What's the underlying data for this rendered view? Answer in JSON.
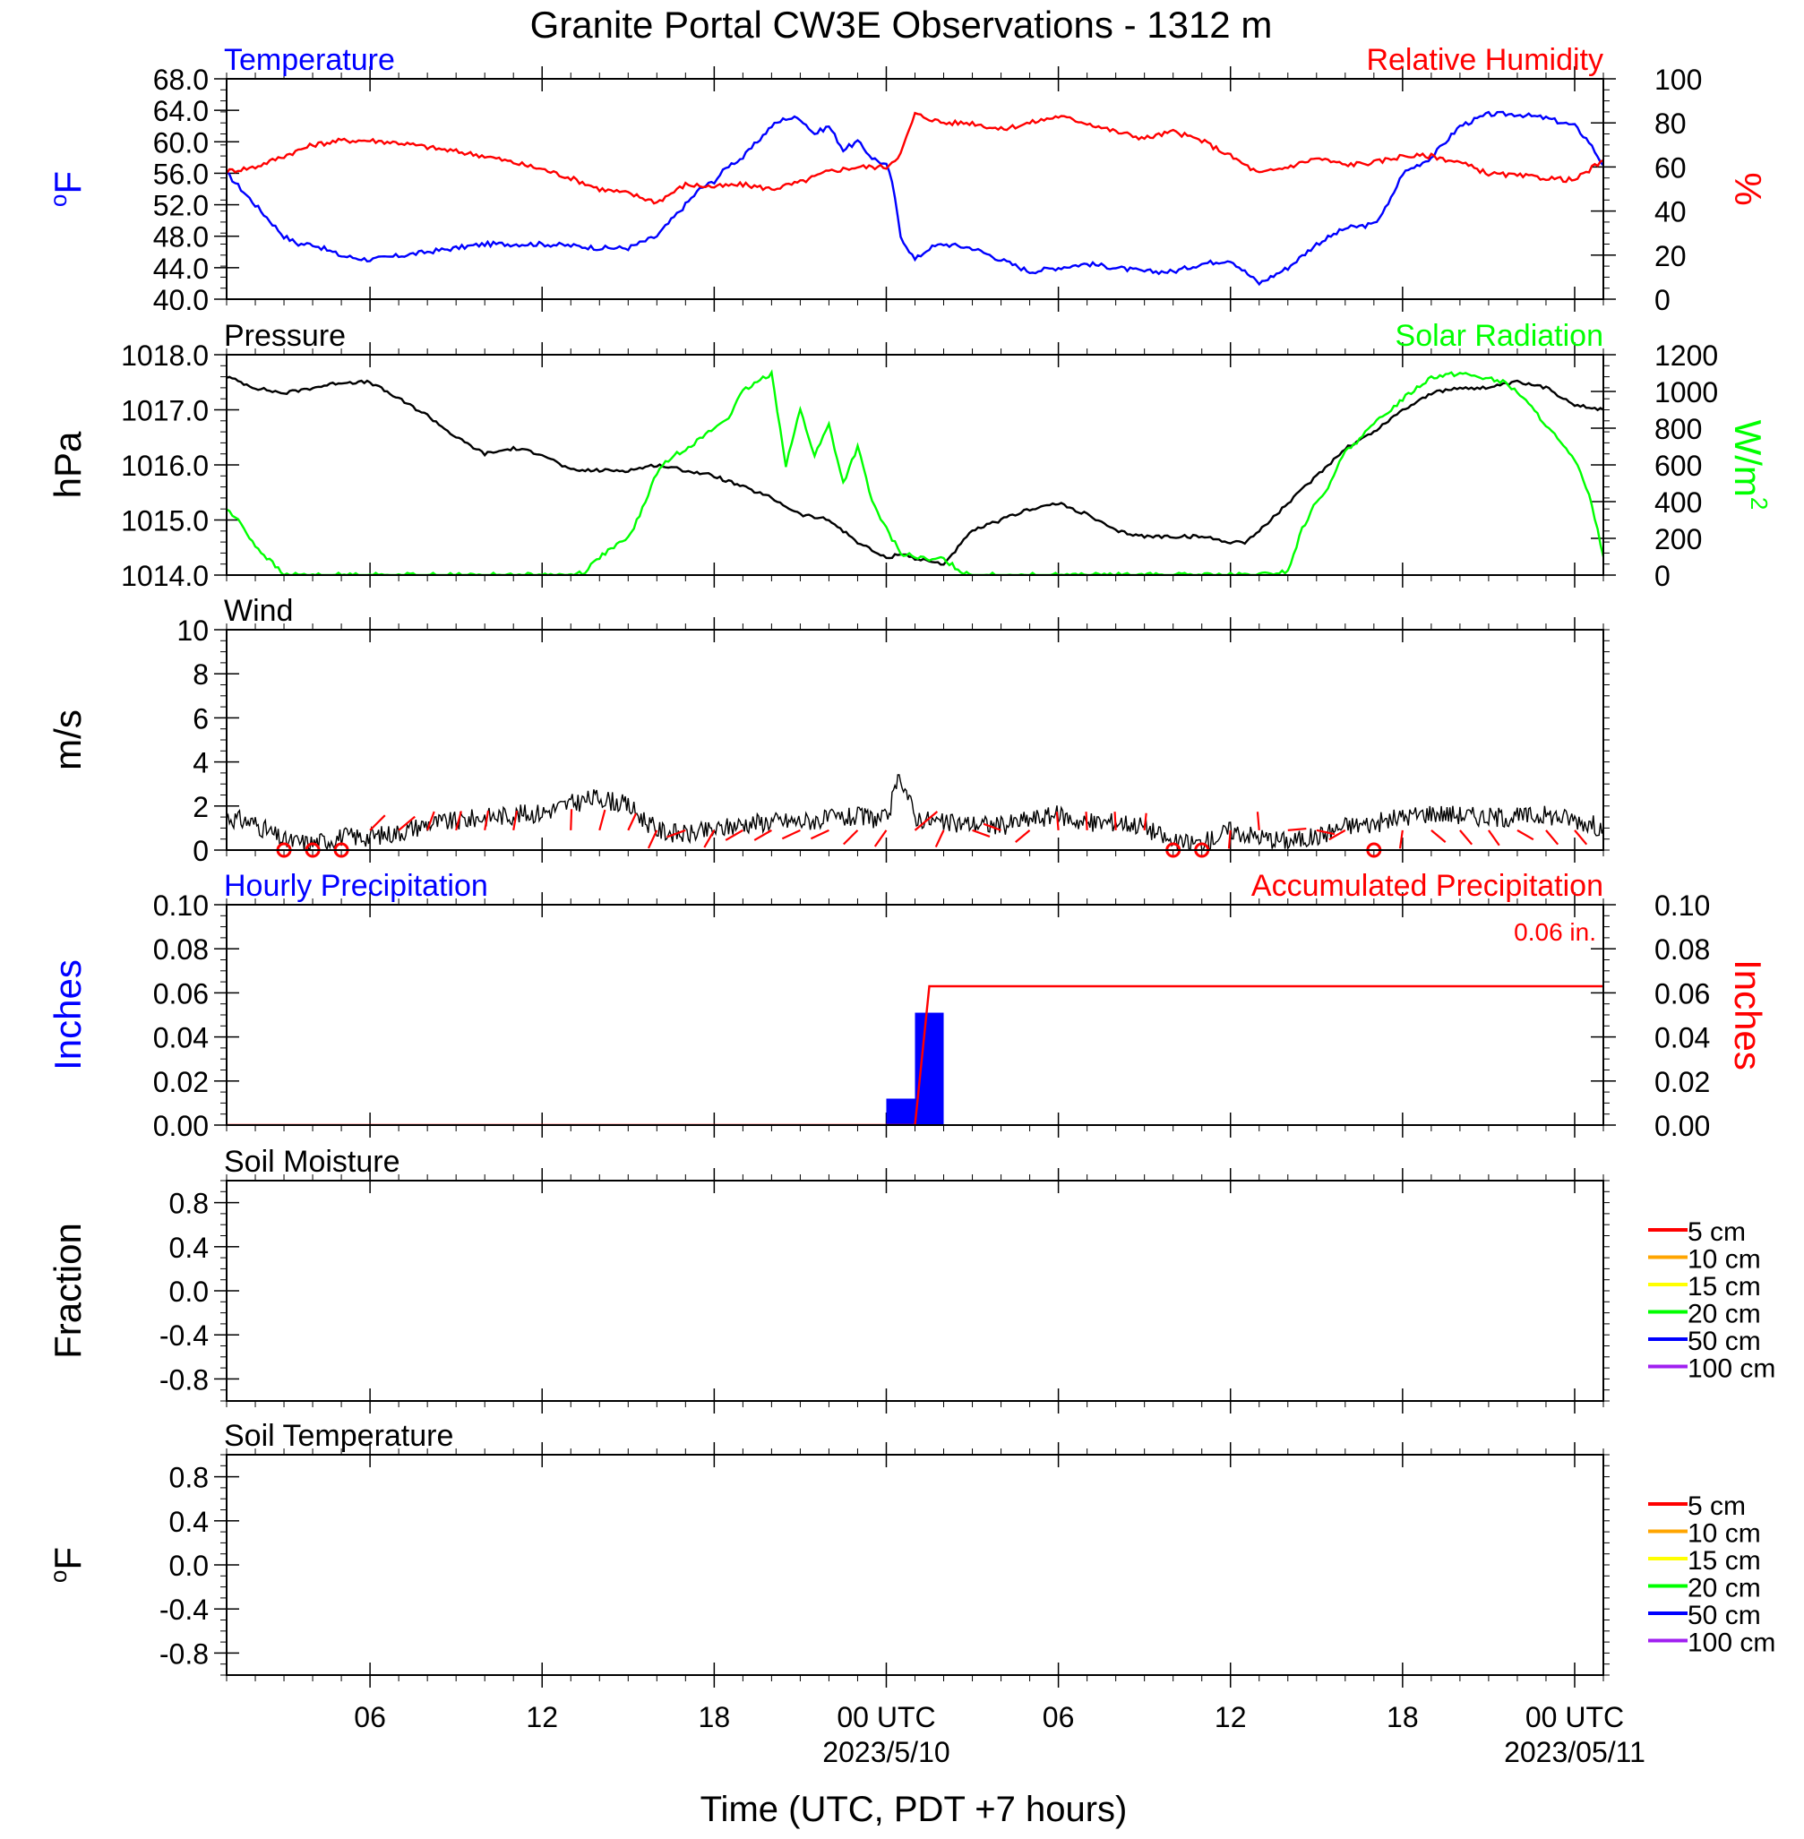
{
  "title": "Granite Portal CW3E Observations - 1312 m",
  "xlabel": "Time (UTC, PDT +7 hours)",
  "x_ticks": {
    "start_hour": 1,
    "end_hour": 49,
    "labels": [
      {
        "hour": 6,
        "label": "06"
      },
      {
        "hour": 12,
        "label": "12"
      },
      {
        "hour": 18,
        "label": "18"
      },
      {
        "hour": 24,
        "label": "00 UTC"
      },
      {
        "hour": 30,
        "label": "06"
      },
      {
        "hour": 36,
        "label": "12"
      },
      {
        "hour": 42,
        "label": "18"
      },
      {
        "hour": 48,
        "label": "00 UTC"
      }
    ],
    "dates": [
      {
        "hour": 24,
        "label": "2023/5/10"
      },
      {
        "hour": 48,
        "label": "2023/05/11"
      }
    ]
  },
  "chart_data": [
    {
      "type": "line",
      "panel": "temperature_humidity",
      "left_title": "Temperature",
      "right_title": "Relative Humidity",
      "ylabel_left": "oF",
      "ylabel_right": "%",
      "ylim_left": [
        40,
        68
      ],
      "ylim_right": [
        0,
        100
      ],
      "yticks_left": [
        "40.0",
        "44.0",
        "48.0",
        "52.0",
        "56.0",
        "60.0",
        "64.0",
        "68.0"
      ],
      "yticks_right": [
        "0",
        "20",
        "40",
        "60",
        "80",
        "100"
      ],
      "colors": {
        "left": "#0000ff",
        "right": "#ff0000"
      },
      "series": [
        {
          "name": "Temperature",
          "axis": "left",
          "x": [
            1,
            1.5,
            2,
            2.5,
            3,
            3.5,
            4,
            5,
            6,
            7,
            8,
            9,
            10,
            11,
            12,
            13,
            14,
            15,
            16,
            16.5,
            17,
            17.5,
            18,
            18.5,
            19,
            19.5,
            20,
            20.5,
            21,
            21.5,
            22,
            22.5,
            23,
            23.5,
            24,
            24.2,
            24.5,
            25,
            25.5,
            26,
            27,
            28,
            29,
            30,
            31,
            32,
            33,
            34,
            35,
            36,
            37,
            38,
            39,
            40,
            41,
            41.5,
            42,
            42.5,
            43,
            44,
            45,
            46,
            47,
            48,
            48.5,
            49
          ],
          "y": [
            56,
            54,
            52,
            50,
            48,
            47,
            47,
            45.5,
            45,
            45.5,
            46,
            46.5,
            47,
            47,
            47,
            46.8,
            46.5,
            46.5,
            48,
            50,
            52,
            54,
            55,
            57,
            58,
            60,
            62,
            63,
            63,
            61,
            62,
            59,
            60,
            58,
            57,
            55,
            48,
            45,
            46.5,
            47,
            46.5,
            45,
            43.5,
            44,
            44.5,
            44,
            43.5,
            43.5,
            44.5,
            45,
            42,
            44,
            47,
            49,
            49.5,
            52,
            56,
            57,
            58,
            62,
            63.5,
            63.5,
            63,
            62,
            60,
            57
          ]
        },
        {
          "name": "Relative Humidity",
          "axis": "right",
          "x": [
            1,
            2,
            3,
            4,
            5,
            6,
            7,
            8,
            9,
            10,
            11,
            12,
            13,
            14,
            15,
            16,
            17,
            18,
            19,
            20,
            21,
            22,
            23,
            24,
            24.5,
            25,
            26,
            27,
            28,
            29,
            30,
            31,
            32,
            33,
            34,
            35,
            36,
            37,
            38,
            39,
            40,
            41,
            42,
            43,
            44,
            45,
            46,
            47,
            48,
            49
          ],
          "y": [
            58,
            60,
            65,
            70,
            72,
            72,
            71,
            69,
            67,
            65,
            62,
            59,
            55,
            50,
            48,
            44,
            52,
            51,
            52,
            50,
            53,
            58,
            60,
            60,
            66,
            84,
            80,
            80,
            77,
            80,
            83,
            80,
            76,
            73,
            76,
            72,
            65,
            57,
            60,
            64,
            61,
            62,
            65,
            65,
            62,
            57,
            56,
            55,
            54,
            63
          ]
        }
      ]
    },
    {
      "type": "line",
      "panel": "pressure_solar",
      "left_title": "Pressure",
      "right_title": "Solar Radiation",
      "ylabel_left": "hPa",
      "ylabel_right": "W/m",
      "ylabel_right_sup": "2",
      "ylim_left": [
        1014,
        1018
      ],
      "ylim_right": [
        0,
        1200
      ],
      "yticks_left": [
        "1014.0",
        "1015.0",
        "1016.0",
        "1017.0",
        "1018.0"
      ],
      "yticks_right": [
        "0",
        "200",
        "400",
        "600",
        "800",
        "1000",
        "1200"
      ],
      "colors": {
        "left": "#000000",
        "right": "#00ff00"
      },
      "series": [
        {
          "name": "Pressure",
          "axis": "left",
          "x": [
            1,
            2,
            3,
            4,
            5,
            6,
            7,
            8,
            9,
            10,
            11,
            12,
            13,
            14,
            15,
            16,
            17,
            18,
            19,
            20,
            21,
            22,
            23,
            24,
            24.5,
            25,
            26,
            27,
            28,
            29,
            30,
            31,
            32,
            33,
            34,
            35,
            36,
            36.5,
            37,
            38,
            39,
            40,
            41,
            42,
            43,
            44,
            45,
            46,
            47,
            48,
            49
          ],
          "y": [
            1017.6,
            1017.4,
            1017.3,
            1017.4,
            1017.5,
            1017.5,
            1017.2,
            1016.9,
            1016.5,
            1016.2,
            1016.3,
            1016.2,
            1015.9,
            1015.9,
            1015.9,
            1016.0,
            1015.9,
            1015.8,
            1015.6,
            1015.4,
            1015.1,
            1015.0,
            1014.6,
            1014.3,
            1014.4,
            1014.3,
            1014.2,
            1014.8,
            1015.0,
            1015.2,
            1015.3,
            1015.1,
            1014.8,
            1014.7,
            1014.7,
            1014.7,
            1014.6,
            1014.6,
            1014.8,
            1015.3,
            1015.8,
            1016.3,
            1016.6,
            1017.0,
            1017.3,
            1017.4,
            1017.4,
            1017.5,
            1017.4,
            1017.1,
            1017.0
          ]
        },
        {
          "name": "Solar Radiation",
          "axis": "right",
          "x": [
            1,
            1.5,
            2,
            3,
            13,
            13.5,
            14,
            15,
            15.5,
            16,
            16.5,
            17,
            17.5,
            18,
            18.5,
            19,
            19.5,
            20,
            20.5,
            21,
            21.5,
            22,
            22.5,
            23,
            23.5,
            24,
            24.5,
            25,
            25.5,
            26,
            26.5,
            27,
            37,
            38,
            38.5,
            39,
            39.5,
            40,
            40.5,
            41,
            42,
            43,
            44,
            45,
            45.5,
            46,
            47,
            48,
            48.5,
            49
          ],
          "y": [
            360,
            280,
            160,
            0,
            0,
            20,
            100,
            200,
            360,
            560,
            640,
            690,
            740,
            800,
            860,
            1000,
            1050,
            1100,
            600,
            900,
            650,
            820,
            500,
            700,
            400,
            250,
            120,
            100,
            80,
            90,
            30,
            0,
            0,
            20,
            250,
            400,
            500,
            680,
            740,
            820,
            960,
            1080,
            1100,
            1070,
            1050,
            1000,
            820,
            620,
            450,
            100
          ]
        }
      ]
    },
    {
      "type": "line",
      "panel": "wind",
      "left_title": "Wind",
      "ylabel_left": "m/s",
      "ylim_left": [
        0,
        10
      ],
      "yticks_left": [
        "0",
        "2",
        "4",
        "6",
        "8",
        "10"
      ],
      "colors": {
        "speed": "#000000",
        "barb": "#ff0000"
      },
      "series": [
        {
          "name": "Wind Speed",
          "axis": "left",
          "x": [
            1,
            2,
            3,
            4,
            5,
            6,
            7,
            8,
            9,
            10,
            11,
            12,
            13,
            14,
            15,
            16,
            17,
            18,
            19,
            20,
            21,
            22,
            23,
            24,
            24.5,
            25,
            26,
            27,
            28,
            29,
            30,
            31,
            32,
            33,
            34,
            35,
            36,
            37,
            38,
            39,
            40,
            41,
            42,
            43,
            44,
            45,
            46,
            47,
            48,
            49
          ],
          "y": [
            1.5,
            1.2,
            0.4,
            0.3,
            0.6,
            0.6,
            0.8,
            1.2,
            1.3,
            1.5,
            1.6,
            1.7,
            2.1,
            2.4,
            2.0,
            0.9,
            0.7,
            0.9,
            1.2,
            1.3,
            1.3,
            1.4,
            1.5,
            1.4,
            3.4,
            1.5,
            1.2,
            1.2,
            1.1,
            1.4,
            1.6,
            1.2,
            1.3,
            1.1,
            0.3,
            0.3,
            0.9,
            0.6,
            0.4,
            0.6,
            1.1,
            1.2,
            1.5,
            1.7,
            1.6,
            1.5,
            1.5,
            1.6,
            1.4,
            1.0
          ]
        }
      ],
      "calm_markers": [
        3,
        4,
        5,
        34,
        35,
        41
      ],
      "barbs": [
        {
          "x": 6,
          "len": 1.6,
          "ang": -45
        },
        {
          "x": 7,
          "len": 1.6,
          "ang": -40
        },
        {
          "x": 8,
          "len": 1.5,
          "ang": -70
        },
        {
          "x": 9,
          "len": 1.5,
          "ang": -75
        },
        {
          "x": 10,
          "len": 1.5,
          "ang": -80
        },
        {
          "x": 11,
          "len": 1.5,
          "ang": -80
        },
        {
          "x": 13,
          "len": 1.6,
          "ang": -88
        },
        {
          "x": 14,
          "len": 1.6,
          "ang": -75
        },
        {
          "x": 15,
          "len": 1.4,
          "ang": -65
        },
        {
          "x": 16,
          "len": 1.5,
          "ang": 115
        },
        {
          "x": 17,
          "len": 1.5,
          "ang": 160
        },
        {
          "x": 18,
          "len": 1.5,
          "ang": 120
        },
        {
          "x": 19,
          "len": 1.5,
          "ang": 150
        },
        {
          "x": 20,
          "len": 1.5,
          "ang": 150
        },
        {
          "x": 21,
          "len": 1.5,
          "ang": 155
        },
        {
          "x": 22,
          "len": 1.5,
          "ang": 155
        },
        {
          "x": 23,
          "len": 1.5,
          "ang": 135
        },
        {
          "x": 24,
          "len": 1.5,
          "ang": 125
        },
        {
          "x": 25,
          "len": 2.2,
          "ang": -40
        },
        {
          "x": 26,
          "len": 1.4,
          "ang": 115
        },
        {
          "x": 27,
          "len": 1.4,
          "ang": 20
        },
        {
          "x": 28,
          "len": 1.4,
          "ang": -160
        },
        {
          "x": 29,
          "len": 1.4,
          "ang": 140
        },
        {
          "x": 30,
          "len": 1.4,
          "ang": -95
        },
        {
          "x": 31,
          "len": 1.4,
          "ang": -93
        },
        {
          "x": 32,
          "len": 1.4,
          "ang": -93
        },
        {
          "x": 33,
          "len": 1.3,
          "ang": -84
        },
        {
          "x": 36,
          "len": 1.4,
          "ang": 95
        },
        {
          "x": 37,
          "len": 1.4,
          "ang": -95
        },
        {
          "x": 38,
          "len": 1.4,
          "ang": -5
        },
        {
          "x": 39,
          "len": 1.4,
          "ang": 12
        },
        {
          "x": 40,
          "len": 1.4,
          "ang": 150
        },
        {
          "x": 42,
          "len": 1.4,
          "ang": 98
        },
        {
          "x": 43,
          "len": 1.4,
          "ang": 40
        },
        {
          "x": 44,
          "len": 1.4,
          "ang": 50
        },
        {
          "x": 45,
          "len": 1.4,
          "ang": 55
        },
        {
          "x": 46,
          "len": 1.4,
          "ang": 30
        },
        {
          "x": 47,
          "len": 1.4,
          "ang": 50
        },
        {
          "x": 48,
          "len": 1.4,
          "ang": 50
        }
      ]
    },
    {
      "type": "bar",
      "panel": "precipitation",
      "left_title": "Hourly Precipitation",
      "right_title": "Accumulated Precipitation",
      "annotation": "0.06 in.",
      "ylabel_left": "Inches",
      "ylabel_right": "Inches",
      "ylim_left": [
        0,
        0.1
      ],
      "ylim_right": [
        0,
        0.1
      ],
      "yticks_left": [
        "0.00",
        "0.02",
        "0.04",
        "0.06",
        "0.08",
        "0.10"
      ],
      "yticks_right": [
        "0.00",
        "0.02",
        "0.04",
        "0.06",
        "0.08",
        "0.10"
      ],
      "colors": {
        "bars": "#0000ff",
        "accum": "#ff0000"
      },
      "bars": [
        {
          "x_start": 24,
          "x_end": 25,
          "value": 0.012
        },
        {
          "x_start": 25,
          "x_end": 26,
          "value": 0.051
        }
      ],
      "accumulated": {
        "x": [
          1,
          25,
          25.5,
          49
        ],
        "y": [
          0,
          0,
          0.063,
          0.063
        ]
      }
    },
    {
      "type": "line",
      "panel": "soil_moisture",
      "left_title": "Soil Moisture",
      "ylabel_left": "Fraction",
      "ylim_left": [
        -1,
        1
      ],
      "yticks_left": [
        "-0.8",
        "-0.4",
        "0.0",
        "0.4",
        "0.8"
      ],
      "legend": [
        {
          "name": "5 cm",
          "color": "#ff0000"
        },
        {
          "name": "10 cm",
          "color": "#ffa500"
        },
        {
          "name": "15 cm",
          "color": "#ffff00"
        },
        {
          "name": "20 cm",
          "color": "#00ff00"
        },
        {
          "name": "50 cm",
          "color": "#0000ff"
        },
        {
          "name": "100 cm",
          "color": "#a020f0"
        }
      ],
      "series": []
    },
    {
      "type": "line",
      "panel": "soil_temperature",
      "left_title": "Soil Temperature",
      "ylabel_left": "oF",
      "ylim_left": [
        -1,
        1
      ],
      "yticks_left": [
        "-0.8",
        "-0.4",
        "0.0",
        "0.4",
        "0.8"
      ],
      "legend": [
        {
          "name": "5 cm",
          "color": "#ff0000"
        },
        {
          "name": "10 cm",
          "color": "#ffa500"
        },
        {
          "name": "15 cm",
          "color": "#ffff00"
        },
        {
          "name": "20 cm",
          "color": "#00ff00"
        },
        {
          "name": "50 cm",
          "color": "#0000ff"
        },
        {
          "name": "100 cm",
          "color": "#a020f0"
        }
      ],
      "series": []
    }
  ]
}
